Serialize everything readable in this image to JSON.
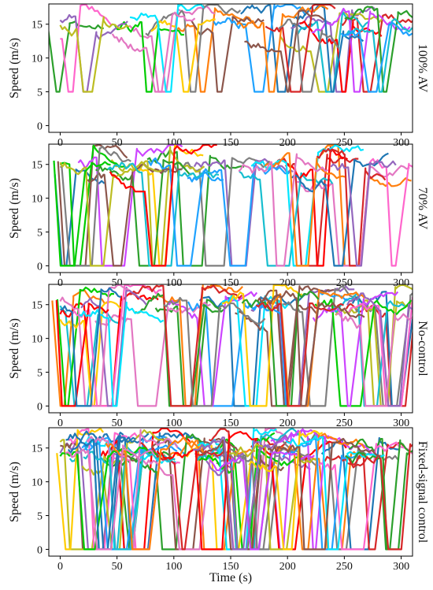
{
  "chart_data": {
    "type": "line",
    "x_label": "Time (s)",
    "x_ticks": [
      0,
      50,
      100,
      150,
      200,
      250,
      300
    ],
    "x_range": [
      -10,
      310
    ],
    "panels": [
      {
        "label": "100% AV",
        "ylabel": "Speed (m/s)",
        "y_ticks": [
          0,
          5,
          10,
          15
        ],
        "ylim": [
          -1,
          18
        ],
        "min_speed": 5,
        "stop_count": 28
      },
      {
        "label": "70% AV",
        "ylabel": "Speed (m/s)",
        "y_ticks": [
          0,
          5,
          10,
          15
        ],
        "ylim": [
          -1,
          18
        ],
        "min_speed": 0,
        "stop_count": 30
      },
      {
        "label": "No-control",
        "ylabel": "Speed (m/s)",
        "y_ticks": [
          0,
          5,
          10,
          15
        ],
        "ylim": [
          -1,
          18
        ],
        "min_speed": 0,
        "stop_count": 42
      },
      {
        "label": "Fixed-signal control",
        "ylabel": "Speed (m/s)",
        "y_ticks": [
          0,
          5,
          10,
          15
        ],
        "ylim": [
          -1,
          18
        ],
        "min_speed": 0,
        "stop_count": 58
      }
    ],
    "series_colors": [
      "#1f77b4",
      "#ff7f0e",
      "#2ca02c",
      "#d62728",
      "#9467bd",
      "#8c564b",
      "#e377c2",
      "#7f7f7f",
      "#bcbd22",
      "#17becf",
      "#1fa2ff",
      "#ff0000",
      "#00cc00",
      "#cc44ff",
      "#ffcc00",
      "#ff66cc",
      "#00e5ff"
    ]
  }
}
